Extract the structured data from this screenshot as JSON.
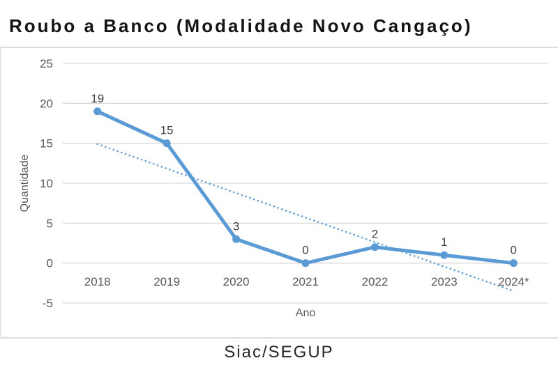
{
  "title": "Roubo a Banco (Modalidade Novo Cangaço)",
  "source": "Siac/SEGUP",
  "chart_data": {
    "type": "line",
    "title": "Roubo a Banco (Modalidade Novo Cangaço)",
    "categories": [
      "2018",
      "2019",
      "2020",
      "2021",
      "2022",
      "2023",
      "2024*"
    ],
    "series": [
      {
        "name": "Quantidade",
        "values": [
          19,
          15,
          3,
          0,
          2,
          1,
          0
        ]
      }
    ],
    "data_labels": [
      "19",
      "15",
      "3",
      "0",
      "2",
      "1",
      "0"
    ],
    "trendline": {
      "style": "dotted",
      "start_value": 14.9,
      "end_value": -3.5
    },
    "xlabel": "Ano",
    "ylabel": "Quantidade",
    "ylim": [
      -5,
      25
    ],
    "ytick_step": 5,
    "ytick_labels": [
      "25",
      "20",
      "15",
      "10",
      "5",
      "0",
      "-5"
    ],
    "grid": "horizontal-only",
    "legend": "none",
    "colors": {
      "line": "#5B9BD5",
      "marker": "#5B9BD5",
      "trendline": "#5B9BD5",
      "grid": "#d9d9d9",
      "axis_text": "#595959",
      "data_label": "#404040"
    }
  }
}
